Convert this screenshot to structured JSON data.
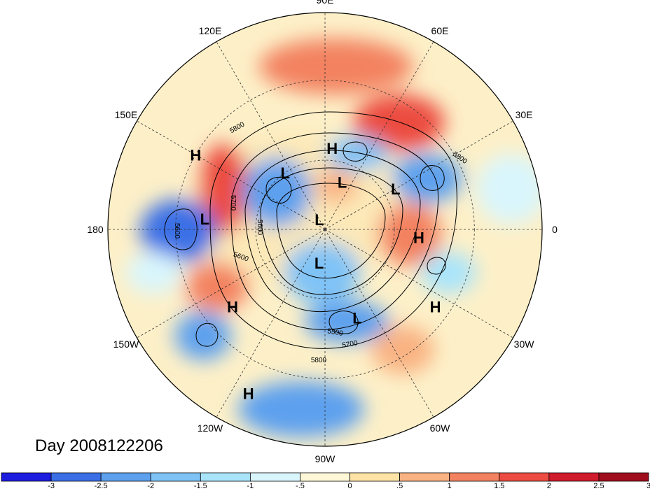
{
  "title": "Day 2008122206",
  "longitude_labels": [
    {
      "text": "90E",
      "lon": 90
    },
    {
      "text": "60E",
      "lon": 60
    },
    {
      "text": "30E",
      "lon": 30
    },
    {
      "text": "0",
      "lon": 0
    },
    {
      "text": "30W",
      "lon": -30
    },
    {
      "text": "60W",
      "lon": -60
    },
    {
      "text": "90W",
      "lon": -90
    },
    {
      "text": "120W",
      "lon": -120
    },
    {
      "text": "150W",
      "lon": -150
    },
    {
      "text": "180",
      "lon": 180
    },
    {
      "text": "150E",
      "lon": 150
    },
    {
      "text": "120E",
      "lon": 120
    }
  ],
  "pressure_centers": [
    {
      "type": "H",
      "lat": 55,
      "lon": 85
    },
    {
      "type": "H",
      "lat": 30,
      "lon": 150
    },
    {
      "type": "H",
      "lat": 40,
      "lon": -140
    },
    {
      "type": "H",
      "lat": 20,
      "lon": -115
    },
    {
      "type": "H",
      "lat": 50,
      "lon": -5
    },
    {
      "type": "H",
      "lat": 35,
      "lon": -35
    },
    {
      "type": "L",
      "lat": 68,
      "lon": 70
    },
    {
      "type": "L",
      "lat": 55,
      "lon": 30
    },
    {
      "type": "L",
      "lat": 60,
      "lon": 125
    },
    {
      "type": "L",
      "lat": 85,
      "lon": 120
    },
    {
      "type": "L",
      "lat": 40,
      "lon": 175
    },
    {
      "type": "L",
      "lat": 75,
      "lon": -100
    },
    {
      "type": "L",
      "lat": 50,
      "lon": -70
    }
  ],
  "contour_labels": [
    "5800",
    "5800",
    "5700",
    "5600",
    "5600",
    "5600",
    "5500",
    "5700",
    "5800"
  ],
  "colorbar": {
    "ticks": [
      "-3",
      "-2.5",
      "-2",
      "-1.5",
      "-1",
      "-.5",
      "0",
      ".5",
      "1",
      "1.5",
      "2",
      "2.5",
      "3"
    ],
    "colors": [
      "#1d1de0",
      "#3a6fe6",
      "#5da0ee",
      "#7fc3f6",
      "#a9e4fb",
      "#d9f6fd",
      "#fff8d8",
      "#fde3a6",
      "#f9b282",
      "#f38260",
      "#ec4c41",
      "#cf1b2b",
      "#a00d1c"
    ]
  }
}
